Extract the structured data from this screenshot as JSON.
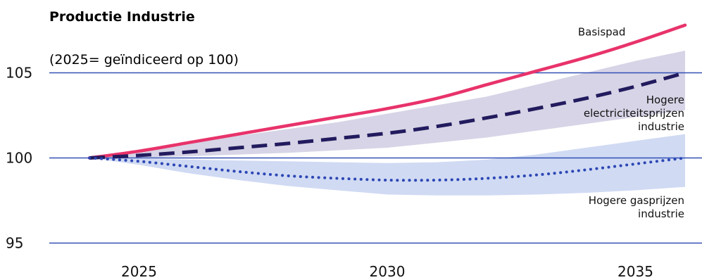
{
  "chart_data": {
    "type": "line",
    "title": "Productie Industrie",
    "subtitle": "(2025= geïndiceerd op 100)",
    "xlabel": "",
    "ylabel": "",
    "xlim": [
      2024,
      2036
    ],
    "ylim": [
      95,
      107.5
    ],
    "x_ticks": [
      2025,
      2030,
      2035
    ],
    "y_ticks": [
      95,
      100,
      105
    ],
    "grid": true,
    "bands": [
      {
        "label": "Hogere electriciteitsprijzen industrie",
        "color": "#d6d4e6",
        "x": [
          2024.0,
          2025,
          2026,
          2027,
          2028,
          2029,
          2030,
          2031,
          2032,
          2033,
          2034,
          2035,
          2036.0
        ],
        "upper": [
          100.0,
          100.4,
          100.9,
          101.3,
          101.7,
          102.1,
          102.6,
          103.1,
          103.6,
          104.3,
          105.0,
          105.7,
          106.3
        ],
        "lower": [
          100.0,
          100.0,
          100.1,
          100.2,
          100.3,
          100.45,
          100.6,
          100.9,
          101.2,
          101.6,
          102.0,
          102.4,
          102.8
        ]
      },
      {
        "label": "Hogere gasprijzen industrie",
        "color": "#d0daf3",
        "x": [
          2024.0,
          2025,
          2026,
          2027,
          2028,
          2029,
          2030,
          2031,
          2032,
          2033,
          2034,
          2035,
          2036.0
        ],
        "upper": [
          100.0,
          99.95,
          99.9,
          99.85,
          99.8,
          99.75,
          99.7,
          99.75,
          99.9,
          100.2,
          100.6,
          101.0,
          101.4
        ],
        "lower": [
          100.0,
          99.6,
          99.1,
          98.7,
          98.35,
          98.1,
          97.85,
          97.8,
          97.8,
          97.85,
          97.95,
          98.1,
          98.3
        ]
      }
    ],
    "series": [
      {
        "name": "Basispad",
        "color": "#e8336b",
        "style": "solid",
        "x": [
          2024.0,
          2025,
          2026,
          2027,
          2028,
          2029,
          2030,
          2031,
          2032,
          2033,
          2034,
          2035,
          2036.0
        ],
        "values": [
          100.0,
          100.4,
          100.9,
          101.4,
          101.9,
          102.4,
          102.9,
          103.5,
          104.3,
          105.1,
          105.9,
          106.8,
          107.8
        ]
      },
      {
        "name": "Hogere electriciteitsprijzen industrie",
        "color": "#221b5e",
        "style": "dashed",
        "x": [
          2024.0,
          2025,
          2026,
          2027,
          2028,
          2029,
          2030,
          2031,
          2032,
          2033,
          2034,
          2035,
          2036.0
        ],
        "values": [
          100.0,
          100.15,
          100.35,
          100.6,
          100.85,
          101.15,
          101.45,
          101.85,
          102.35,
          102.9,
          103.5,
          104.2,
          105.0
        ]
      },
      {
        "name": "Hogere gasprijzen industrie",
        "color": "#2c46b4",
        "style": "dotted",
        "x": [
          2024.0,
          2025,
          2026,
          2027,
          2028,
          2029,
          2030,
          2031,
          2032,
          2033,
          2034,
          2035,
          2036.0
        ],
        "values": [
          100.0,
          99.8,
          99.5,
          99.2,
          98.95,
          98.8,
          98.7,
          98.7,
          98.8,
          99.0,
          99.3,
          99.65,
          100.0
        ]
      }
    ],
    "annotations": [
      {
        "lines": [
          "Basispad"
        ],
        "x": 2034.8,
        "y": 107.2
      },
      {
        "lines": [
          "Hogere",
          "electriciteitsprijzen",
          "industrie"
        ],
        "x": 2036.0,
        "y": 103.2
      },
      {
        "lines": [
          "Hogere gasprijzen",
          "industrie"
        ],
        "x": 2036.0,
        "y": 97.3
      }
    ]
  }
}
